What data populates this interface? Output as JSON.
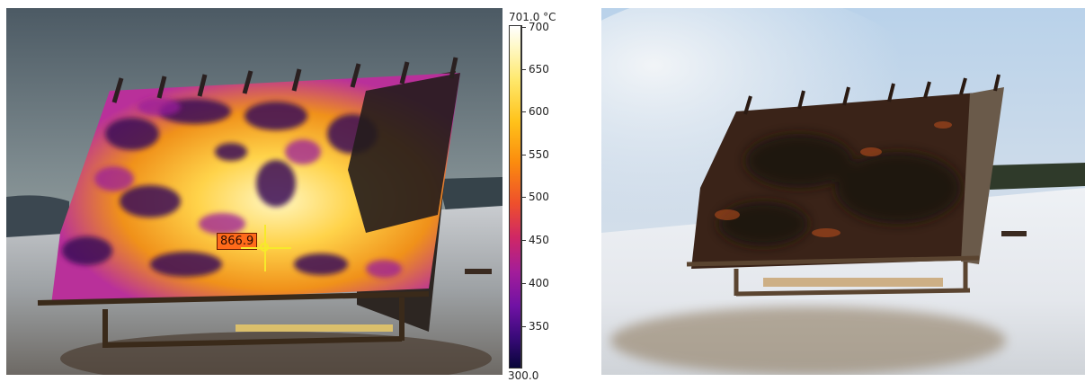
{
  "thermal_view": {
    "scale_max_label": "701.0 °C",
    "scale_min_label": "300.0",
    "scale_ticks": [
      "700",
      "650",
      "600",
      "550",
      "500",
      "450",
      "400",
      "350"
    ],
    "spot_value": "866.9"
  },
  "colors": {
    "palette_high": "#ffffff",
    "palette_mid": "#ee4f2c",
    "palette_low": "#08053a",
    "spot_marker": "#f7ea2a",
    "spot_label_bg": "#ff6a1a"
  }
}
